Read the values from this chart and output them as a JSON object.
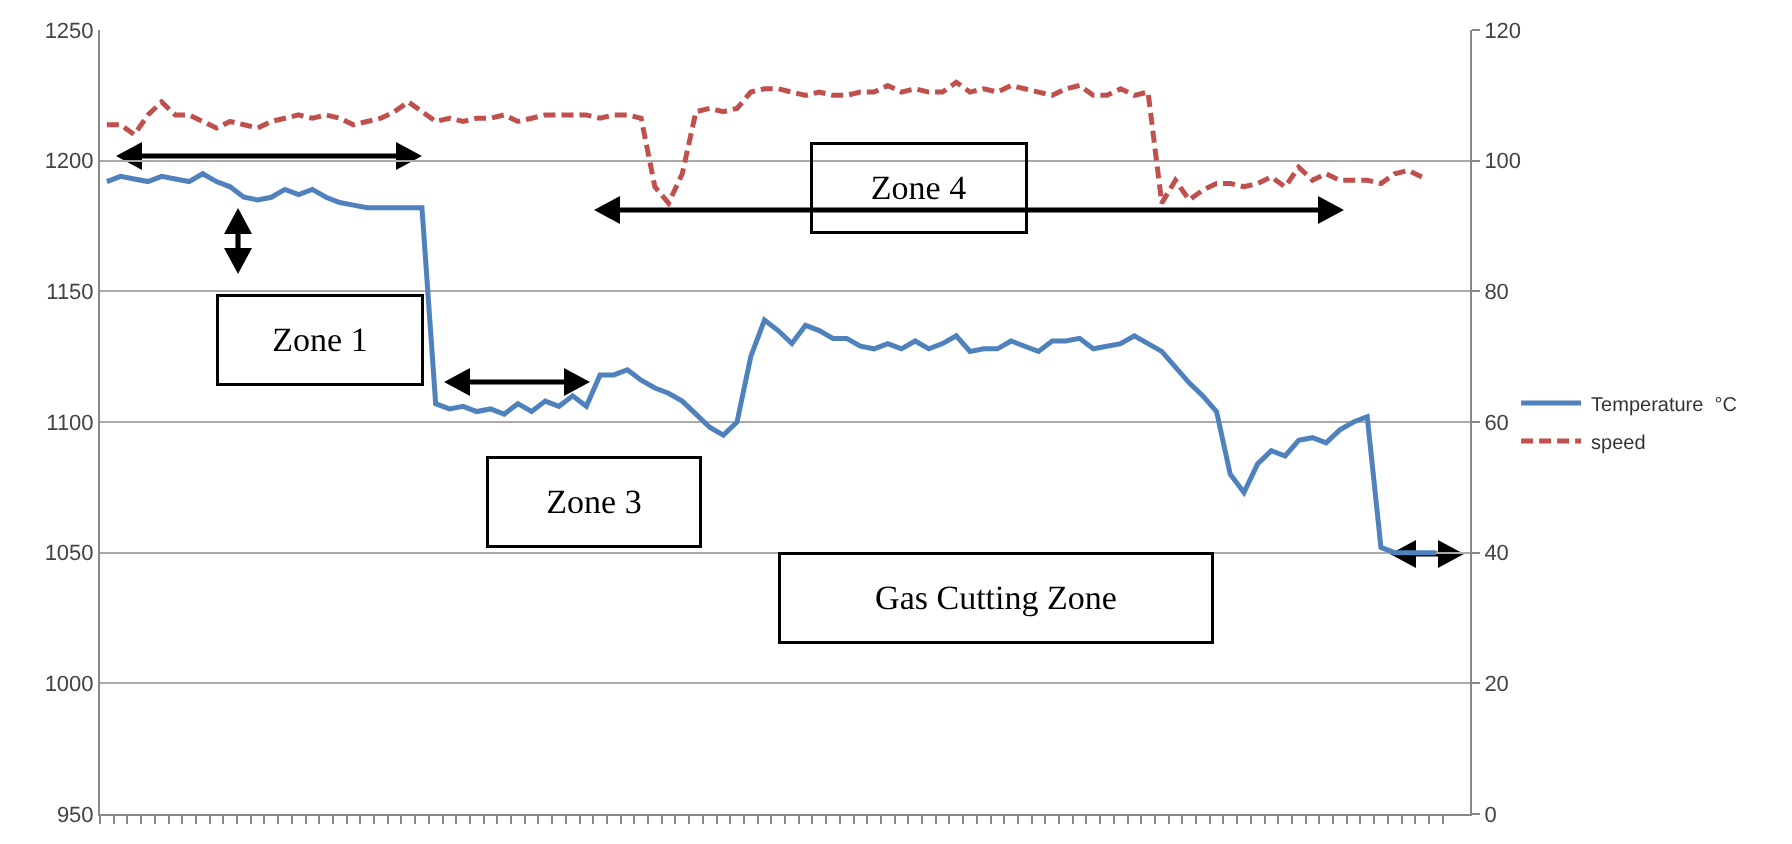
{
  "chart_data": {
    "type": "line",
    "categories": [
      null,
      null,
      null,
      null,
      null,
      null,
      null,
      null,
      null,
      null,
      null,
      null,
      null,
      null,
      null,
      null,
      null,
      null,
      null,
      null,
      null,
      null,
      null,
      null,
      null,
      null,
      null,
      null,
      null,
      null,
      null,
      null,
      null,
      null,
      null,
      null,
      null,
      null,
      null,
      null,
      null,
      null,
      null,
      null,
      null,
      null,
      null,
      null,
      null,
      null,
      null,
      null,
      null,
      null,
      null,
      null,
      null,
      null,
      null,
      null,
      null,
      null,
      null,
      null,
      null,
      null,
      null,
      null,
      null,
      null,
      null,
      null,
      null,
      null,
      null,
      null,
      null,
      null,
      null,
      null,
      null,
      null,
      null,
      null,
      null,
      null,
      null,
      null,
      null,
      null,
      null,
      null,
      null,
      null,
      null,
      null,
      null,
      null
    ],
    "series": [
      {
        "name": "Temperature  °C",
        "color": "#4f81bd",
        "line_style": "solid",
        "values": [
          1192,
          1194,
          1193,
          1192,
          1194,
          1193,
          1192,
          1195,
          1192,
          1190,
          1186,
          1185,
          1186,
          1189,
          1187,
          1189,
          1186,
          1184,
          1183,
          1182,
          1182,
          1182,
          1182,
          1182,
          1107,
          1105,
          1106,
          1104,
          1105,
          1103,
          1107,
          1104,
          1108,
          1106,
          1110,
          1106,
          1118,
          1118,
          1120,
          1116,
          1113,
          1111,
          1108,
          1103,
          1098,
          1095,
          1100,
          1125,
          1139,
          1135,
          1130,
          1137,
          1135,
          1132,
          1132,
          1129,
          1128,
          1130,
          1128,
          1131,
          1128,
          1130,
          1133,
          1127,
          1128,
          1128,
          1131,
          1129,
          1127,
          1131,
          1131,
          1132,
          1128,
          1129,
          1130,
          1133,
          1130,
          1127,
          1121,
          1115,
          1110,
          1104,
          1080,
          1073,
          1084,
          1089,
          1087,
          1093,
          1094,
          1092,
          1097,
          1100,
          1102,
          1052,
          1050,
          1050,
          1050,
          1050
        ]
      },
      {
        "name": "speed",
        "color": "#c0504d",
        "line_style": "dashed",
        "axis": "y2",
        "values": [
          105.5,
          105.5,
          104,
          107,
          109,
          107,
          107,
          106,
          105,
          106,
          105.5,
          105,
          106,
          106.5,
          107,
          106.5,
          107,
          106.5,
          105.5,
          106,
          106.5,
          107.5,
          109,
          107.5,
          106,
          106.5,
          106,
          106.5,
          106.5,
          107,
          106,
          106.5,
          107,
          107,
          107,
          107,
          106.5,
          107,
          107,
          106.5,
          96,
          93.5,
          98,
          107.5,
          108,
          107.5,
          108,
          110.5,
          111,
          111,
          110.5,
          110,
          110.5,
          110,
          110,
          110.5,
          110.5,
          111.5,
          110.5,
          111,
          110.5,
          110.5,
          112,
          110.5,
          111,
          110.5,
          111.5,
          111,
          110.5,
          110,
          111,
          111.5,
          110,
          110,
          111,
          110,
          110.5,
          93.5,
          97,
          94,
          95.5,
          96.5,
          96.5,
          96,
          96.5,
          97.5,
          96,
          99,
          97,
          98,
          97,
          97,
          97,
          96.5,
          98,
          98.5,
          97.5,
          null
        ]
      }
    ],
    "ylim": [
      950,
      1250
    ],
    "yticks": [
      950,
      1000,
      1050,
      1100,
      1150,
      1200,
      1250
    ],
    "y2lim": [
      0,
      120
    ],
    "y2ticks": [
      0,
      20,
      40,
      60,
      80,
      100,
      120
    ],
    "grid": "y",
    "legend": "right",
    "marker": "none",
    "tick_labels": "y",
    "annotations": [
      "Zone 1",
      "Zone 3",
      "Zone 4",
      "Gas Cutting Zone"
    ]
  }
}
